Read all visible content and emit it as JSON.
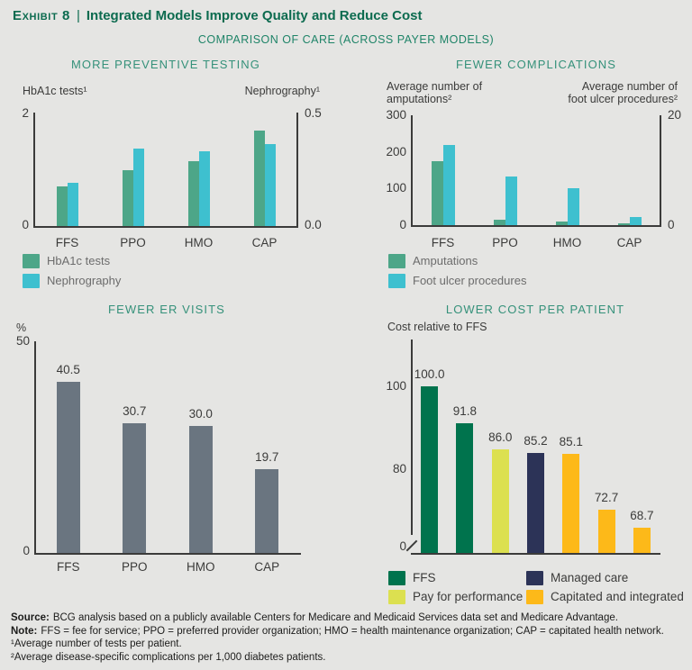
{
  "page": {
    "exhibit_label": "Exhibit 8",
    "separator": "|",
    "title": "Integrated Models Improve Quality and Reduce Cost",
    "subtitle": "COMPARISON OF CARE (ACROSS PAYER MODELS)"
  },
  "colors": {
    "seagreen": "#4DA688",
    "cyan": "#3EC0CF",
    "darkgreen": "#00734D",
    "lime": "#DCE050",
    "navy": "#2C3357",
    "gold": "#FDB919",
    "gray": "#6A7580",
    "background": "#E5E5E3",
    "title_green": "#0C6B4F",
    "section_green": "#35917A",
    "axis_text": "#3B3B3A"
  },
  "chart_data": [
    {
      "type": "bar",
      "title": "MORE PREVENTIVE TESTING",
      "left_axis": {
        "label": "HbA1c tests¹",
        "ticks": [
          "2",
          "0"
        ],
        "max": 2
      },
      "right_axis": {
        "label": "Nephrography¹",
        "ticks": [
          "0.5",
          "0.0"
        ],
        "max": 0.5
      },
      "categories": [
        "FFS",
        "PPO",
        "HMO",
        "CAP"
      ],
      "series": [
        {
          "name": "HbA1c tests",
          "axis": "left",
          "color": "seagreen",
          "values": [
            0.7,
            0.98,
            1.14,
            1.69
          ]
        },
        {
          "name": "Nephrography",
          "axis": "right",
          "color": "cyan",
          "values": [
            0.19,
            0.34,
            0.33,
            0.36
          ]
        }
      ],
      "legend_position": "bottom-left",
      "grid": false
    },
    {
      "type": "bar",
      "title": "FEWER COMPLICATIONS",
      "left_axis": {
        "label": "Average number of amputations²",
        "label_lines": [
          "Average number of",
          "amputations²"
        ],
        "ticks": [
          "300",
          "200",
          "100",
          "0"
        ],
        "max": 300
      },
      "right_axis": {
        "label": "Average number of foot ulcer procedures²",
        "label_lines": [
          "Average number of",
          "foot ulcer procedures²"
        ],
        "ticks": [
          "20",
          "0"
        ],
        "max": 20
      },
      "categories": [
        "FFS",
        "PPO",
        "HMO",
        "CAP"
      ],
      "series": [
        {
          "name": "Amputations",
          "axis": "left",
          "color": "seagreen",
          "values": [
            175,
            15,
            10,
            5
          ]
        },
        {
          "name": "Foot ulcer procedures",
          "axis": "right",
          "color": "cyan",
          "values": [
            14.6,
            8.8,
            6.8,
            1.4
          ]
        }
      ],
      "legend_position": "bottom-left",
      "grid": false
    },
    {
      "type": "bar",
      "title": "FEWER ER VISITS",
      "left_axis": {
        "label": "%",
        "ticks": [
          "50",
          "0"
        ],
        "max": 50
      },
      "categories": [
        "FFS",
        "PPO",
        "HMO",
        "CAP"
      ],
      "series": [
        {
          "name": "ER visits",
          "axis": "left",
          "color": "gray",
          "values": [
            40.5,
            30.7,
            30.0,
            19.7
          ],
          "labels": [
            "40.5",
            "30.7",
            "30.0",
            "19.7"
          ]
        }
      ],
      "grid": false
    },
    {
      "type": "bar",
      "title": "LOWER COST PER PATIENT",
      "left_axis": {
        "label": "Cost relative to FFS",
        "ticks": [
          "100",
          "80",
          "0"
        ],
        "broken_axis": true
      },
      "values": [
        100.0,
        91.8,
        86.0,
        85.2,
        85.1,
        72.7,
        68.7
      ],
      "labels": [
        "100.0",
        "91.8",
        "86.0",
        "85.2",
        "85.1",
        "72.7",
        "68.7"
      ],
      "bar_colors": [
        "darkgreen",
        "darkgreen",
        "lime",
        "navy",
        "gold",
        "gold",
        "gold"
      ],
      "legend": [
        {
          "label": "FFS",
          "color": "darkgreen"
        },
        {
          "label": "Managed care",
          "color": "navy"
        },
        {
          "label": "Pay for performance",
          "color": "lime"
        },
        {
          "label": "Capitated and integrated",
          "color": "gold"
        }
      ],
      "grid": false
    }
  ],
  "footer": {
    "source_label": "Source:",
    "source_text": "BCG analysis based on a publicly available Centers for Medicare and Medicaid Services data set and Medicare Advantage.",
    "note_label": "Note:",
    "note_text": "FFS = fee for service; PPO = preferred provider organization; HMO = health maintenance organization; CAP = capitated health network.",
    "footnote1": "¹Average number of tests per patient.",
    "footnote2": "²Average disease-specific complications per 1,000 diabetes patients."
  }
}
